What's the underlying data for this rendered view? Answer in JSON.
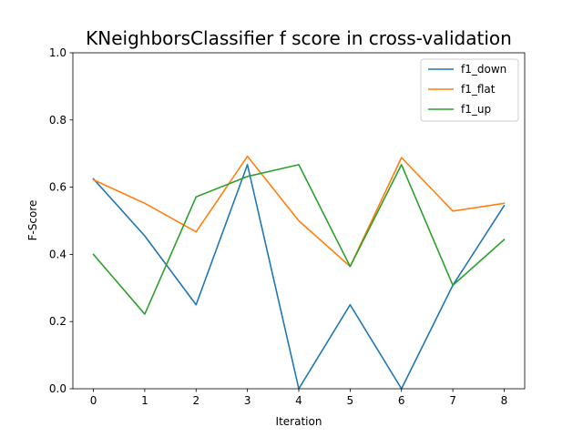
{
  "chart_data": {
    "type": "line",
    "title": "KNeighborsClassifier f score in cross-validation",
    "xlabel": "Iteration",
    "ylabel": "F-Score",
    "x": [
      0,
      1,
      2,
      3,
      4,
      5,
      6,
      7,
      8
    ],
    "xlim": [
      -0.4,
      8.4
    ],
    "ylim": [
      0.0,
      1.0
    ],
    "xticks": [
      "0",
      "1",
      "2",
      "3",
      "4",
      "5",
      "6",
      "7",
      "8"
    ],
    "yticks": [
      "0.0",
      "0.2",
      "0.4",
      "0.6",
      "0.8",
      "1.0"
    ],
    "grid": false,
    "legend_position": "top-right",
    "series": [
      {
        "name": "f1_down",
        "color": "#1f77b4",
        "values": [
          0.625,
          0.455,
          0.25,
          0.667,
          0.0,
          0.25,
          0.0,
          0.308,
          0.545
        ]
      },
      {
        "name": "f1_flat",
        "color": "#ff7f0e",
        "values": [
          0.622,
          0.552,
          0.467,
          0.692,
          0.5,
          0.364,
          0.688,
          0.529,
          0.552
        ]
      },
      {
        "name": "f1_up",
        "color": "#2ca02c",
        "values": [
          0.4,
          0.222,
          0.571,
          0.632,
          0.667,
          0.364,
          0.667,
          0.308,
          0.444
        ]
      }
    ]
  }
}
